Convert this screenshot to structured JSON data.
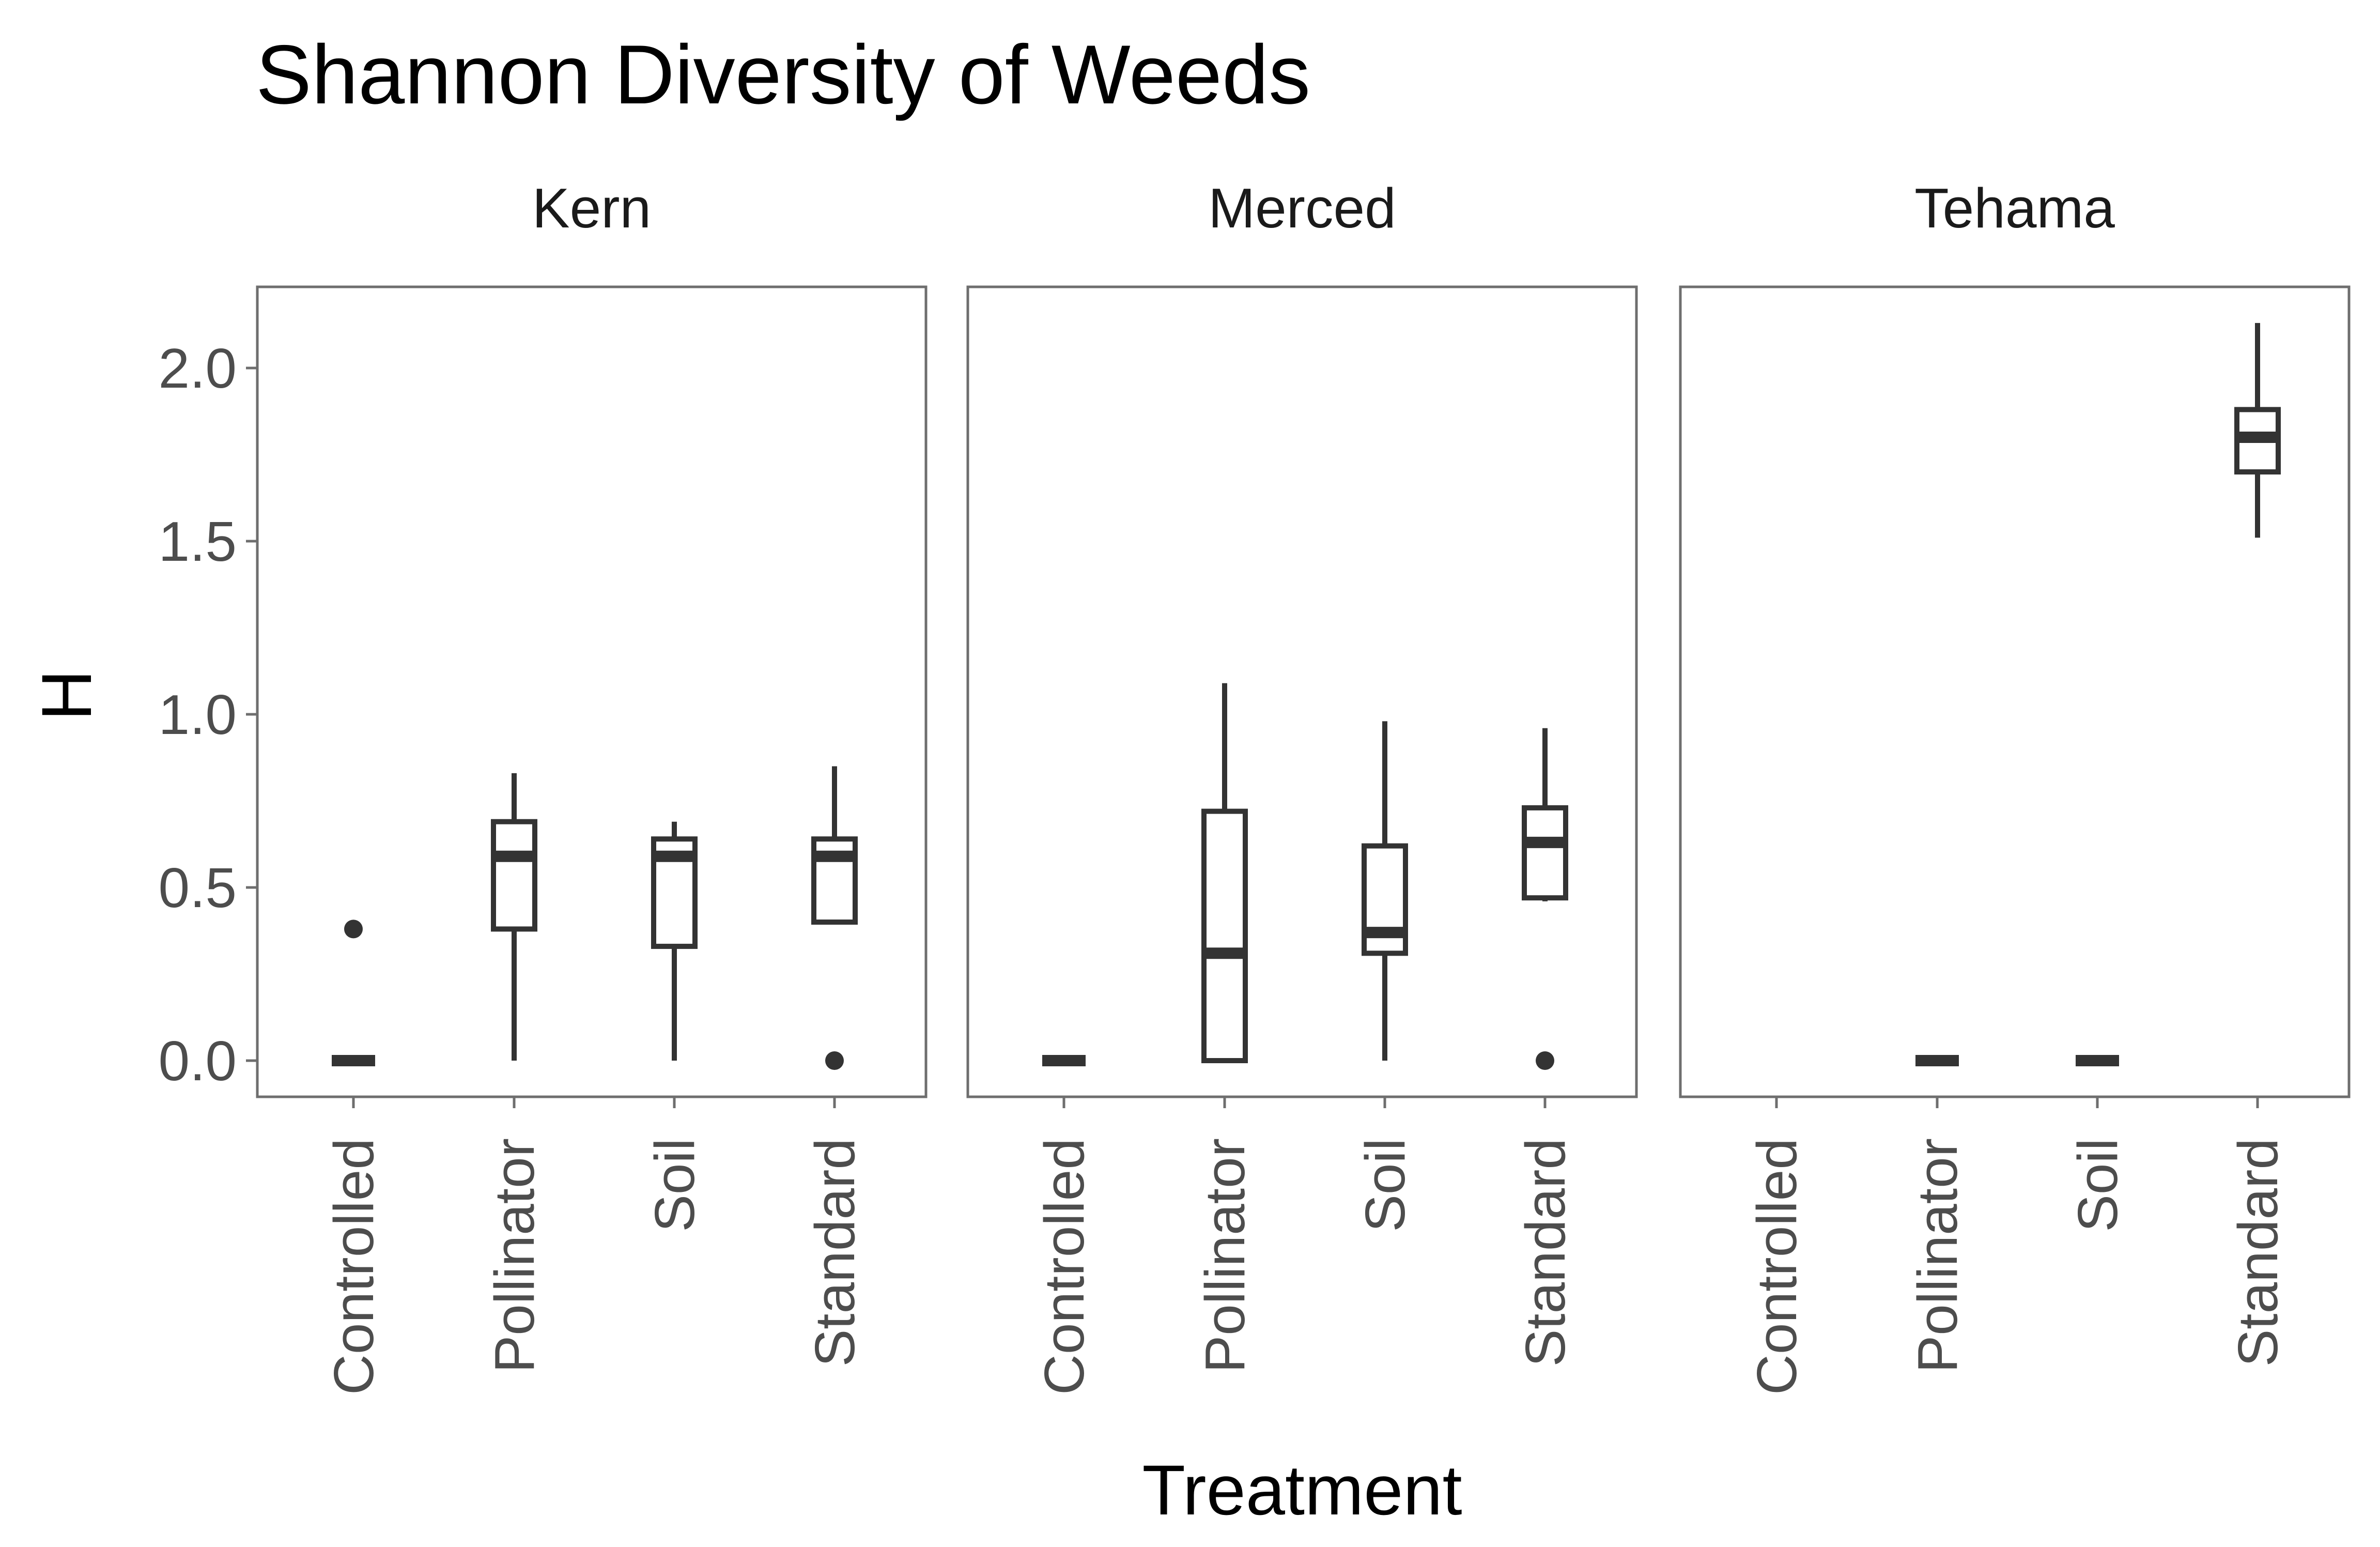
{
  "chart_data": {
    "type": "boxplot",
    "title": "Shannon Diversity of Weeds",
    "xlabel": "Treatment",
    "ylabel": "H",
    "ylim": [
      -0.1,
      2.25
    ],
    "yticks": [
      0.0,
      0.5,
      1.0,
      1.5,
      2.0
    ],
    "ytick_labels": [
      "0.0",
      "0.5",
      "1.0",
      "1.5",
      "2.0"
    ],
    "categories": [
      "Controlled",
      "Pollinator",
      "Soil",
      "Standard"
    ],
    "grid": false,
    "colors": {
      "box_line": "#333333",
      "panel_border": "#6e6e6e",
      "tick_text": "#4d4d4d"
    },
    "panels": [
      {
        "name": "Kern",
        "boxes": [
          {
            "category": "Controlled",
            "q1": 0.0,
            "median": 0.0,
            "q3": 0.0,
            "whisker_low": 0.0,
            "whisker_high": 0.0,
            "outliers": [
              0.38
            ]
          },
          {
            "category": "Pollinator",
            "q1": 0.38,
            "median": 0.59,
            "q3": 0.69,
            "whisker_low": 0.0,
            "whisker_high": 0.83,
            "outliers": []
          },
          {
            "category": "Soil",
            "q1": 0.33,
            "median": 0.59,
            "q3": 0.64,
            "whisker_low": 0.0,
            "whisker_high": 0.69,
            "outliers": []
          },
          {
            "category": "Standard",
            "q1": 0.4,
            "median": 0.59,
            "q3": 0.64,
            "whisker_low": 0.4,
            "whisker_high": 0.85,
            "outliers": [
              0.0
            ]
          }
        ]
      },
      {
        "name": "Merced",
        "boxes": [
          {
            "category": "Controlled",
            "q1": 0.0,
            "median": 0.0,
            "q3": 0.0,
            "whisker_low": 0.0,
            "whisker_high": 0.0,
            "outliers": []
          },
          {
            "category": "Pollinator",
            "q1": 0.0,
            "median": 0.31,
            "q3": 0.72,
            "whisker_low": 0.0,
            "whisker_high": 1.09,
            "outliers": []
          },
          {
            "category": "Soil",
            "q1": 0.31,
            "median": 0.37,
            "q3": 0.62,
            "whisker_low": 0.0,
            "whisker_high": 0.98,
            "outliers": []
          },
          {
            "category": "Standard",
            "q1": 0.47,
            "median": 0.63,
            "q3": 0.73,
            "whisker_low": 0.46,
            "whisker_high": 0.96,
            "outliers": [
              0.0
            ]
          }
        ]
      },
      {
        "name": "Tehama",
        "boxes": [
          {
            "category": "Pollinator",
            "q1": 0.0,
            "median": 0.0,
            "q3": 0.0,
            "whisker_low": 0.0,
            "whisker_high": 0.0,
            "outliers": []
          },
          {
            "category": "Soil",
            "q1": 0.0,
            "median": 0.0,
            "q3": 0.0,
            "whisker_low": 0.0,
            "whisker_high": 0.0,
            "outliers": []
          },
          {
            "category": "Standard",
            "q1": 1.7,
            "median": 1.8,
            "q3": 1.88,
            "whisker_low": 1.51,
            "whisker_high": 2.13,
            "outliers": []
          }
        ]
      }
    ]
  }
}
